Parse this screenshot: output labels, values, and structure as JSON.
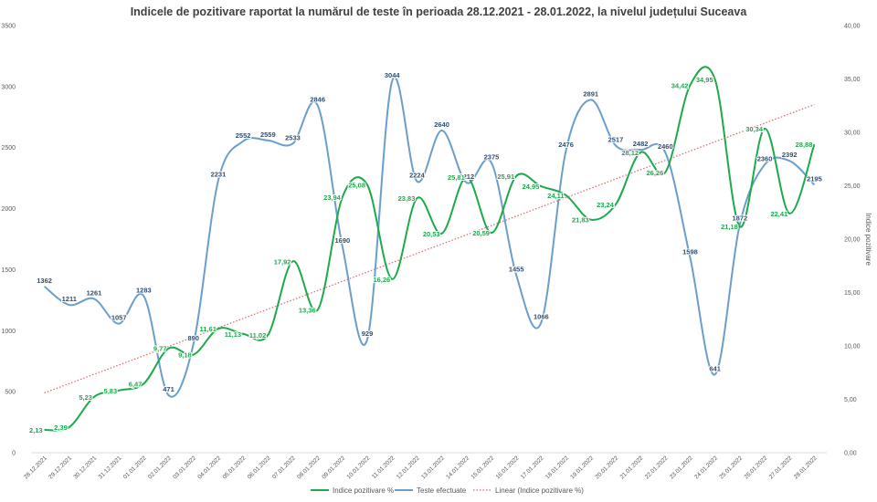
{
  "chart_data": {
    "type": "line",
    "title": "Indicele de pozitivare  raportat la numărul de teste în perioada 28.12.2021 - 28.01.2022, la nivelul județului Suceava",
    "ylabel_right": "Indice pozitivare",
    "left_axis": {
      "min": 0,
      "max": 3500,
      "step": 500,
      "ticks": [
        "0",
        "500",
        "1000",
        "1500",
        "2000",
        "2500",
        "3000",
        "3500"
      ]
    },
    "right_axis": {
      "min": 0,
      "max": 40,
      "step": 5,
      "ticks": [
        "0,00",
        "5,00",
        "10,00",
        "15,00",
        "20,00",
        "25,00",
        "30,00",
        "35,00",
        "40,00"
      ]
    },
    "categories": [
      "28.12.2021",
      "29.12.2021",
      "30.12.2021",
      "31.12.2021",
      "01.01.2022",
      "02.01.2022",
      "03.01.2022",
      "04.01.2022",
      "05.01.2022",
      "06.01.2022",
      "07.01.2022",
      "08.01.2022",
      "09.01.2022",
      "10.01.2022",
      "11.01.2022",
      "12.01.2022",
      "13.01.2022",
      "14.01.2022",
      "15.01.2022",
      "16.01.2022",
      "17.01.2022",
      "18.01.2022",
      "19.01.2022",
      "20.01.2022",
      "21.01.2022",
      "22.01.2022",
      "23.01.2022",
      "24.01.2022",
      "25.01.2022",
      "26.01.2022",
      "27.01.2022",
      "28.01.2022"
    ],
    "series": [
      {
        "name": "Indice pozitivare %",
        "axis": "right",
        "color": "#1DAA4B",
        "values": [
          2.13,
          2.39,
          5.23,
          5.83,
          6.47,
          9.77,
          9.18,
          11.61,
          11.13,
          11.02,
          17.92,
          13.36,
          23.94,
          25.08,
          16.26,
          23.83,
          20.53,
          25.81,
          20.59,
          25.91,
          24.95,
          24.11,
          21.83,
          23.24,
          28.12,
          26.26,
          34.42,
          34.95,
          21.18,
          30.34,
          22.41,
          28.88
        ],
        "labels": [
          "2,13",
          "2,39",
          "5,23",
          "5,83",
          "6,47",
          "9,77",
          "9,18",
          "11,61",
          "11,13",
          "11,02",
          "17,92",
          "13,36",
          "23,94",
          "25,08",
          "16,26",
          "23,83",
          "20,53",
          "25,81",
          "20,59",
          "25,91",
          "24,95",
          "24,11",
          "21,83",
          "23,24",
          "28,12",
          "26,26",
          "34,42",
          "34,95",
          "21,18",
          "30,34",
          "22,41",
          "28,88"
        ]
      },
      {
        "name": "Teste efectuate",
        "axis": "left",
        "color": "#6A9ECB",
        "values": [
          1362,
          1211,
          1261,
          1057,
          1283,
          471,
          890,
          2231,
          2552,
          2559,
          2533,
          2846,
          1690,
          929,
          3044,
          2224,
          2640,
          2212,
          2375,
          1455,
          1066,
          2476,
          2891,
          2517,
          2482,
          2460,
          1598,
          641,
          1872,
          2360,
          2392,
          2195
        ],
        "labels": [
          "1362",
          "1211",
          "1261",
          "1057",
          "1283",
          "471",
          "890",
          "2231",
          "2552",
          "2559",
          "2533",
          "2846",
          "1690",
          "929",
          "3044",
          "2224",
          "2640",
          "2212",
          "2375",
          "1455",
          "1066",
          "2476",
          "2891",
          "2517",
          "2482",
          "2460",
          "1598",
          "641",
          "1872",
          "2360",
          "2392",
          "2195"
        ]
      },
      {
        "name": "Linear (Indice pozitivare %)",
        "axis": "right",
        "type": "trendline",
        "color": "#E06666",
        "trend": {
          "start": 5.6,
          "end": 32.6
        }
      }
    ],
    "legend_position": "bottom",
    "grid": false
  }
}
